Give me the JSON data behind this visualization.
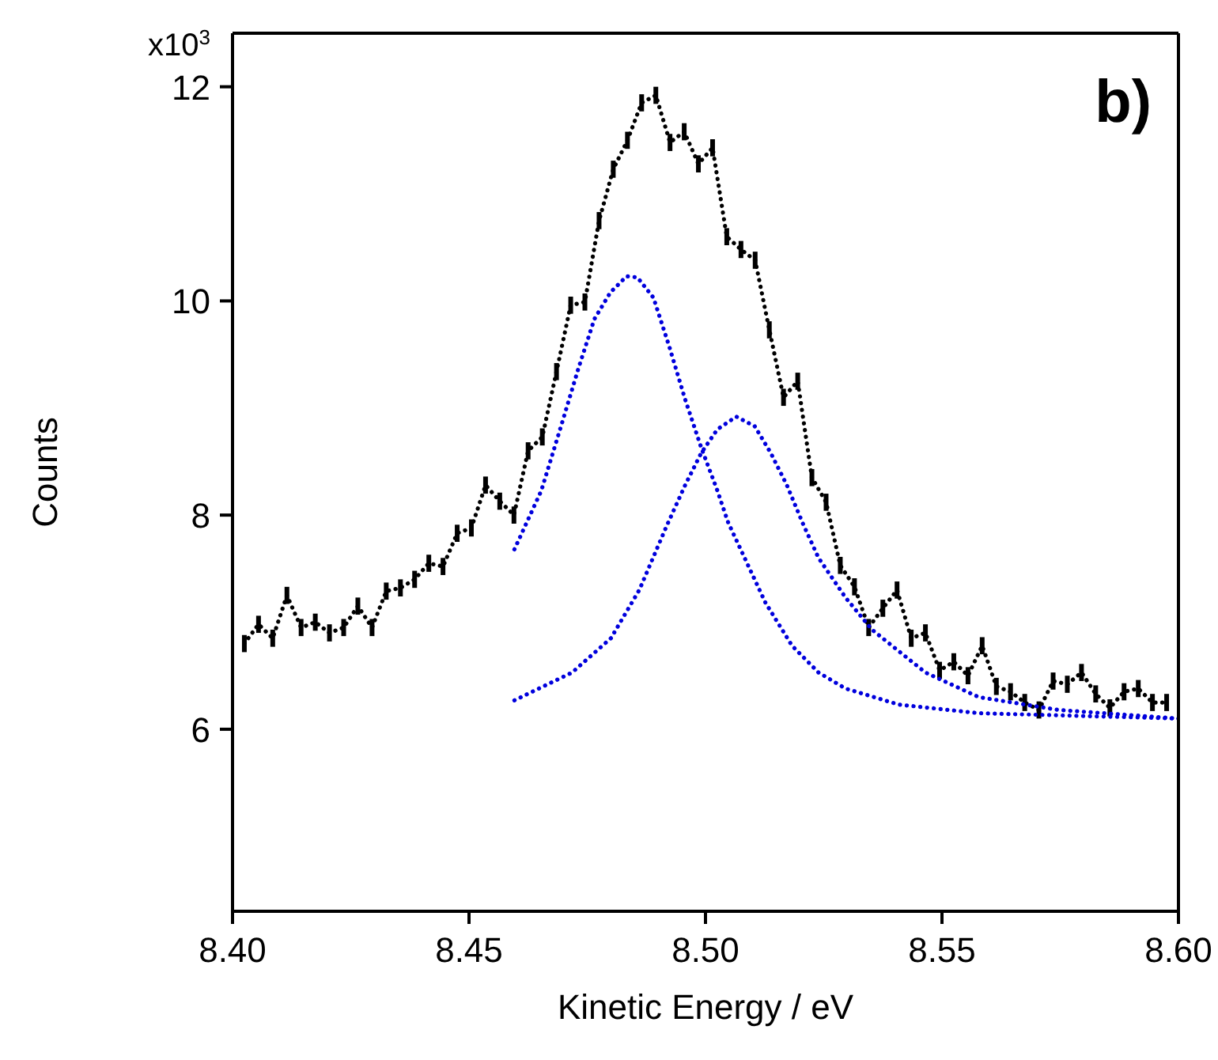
{
  "chart_data": {
    "type": "line",
    "xlabel": "Kinetic Energy / eV",
    "ylabel": "Counts",
    "xlim": [
      8.4,
      8.6
    ],
    "xticks": [
      {
        "value": 8.4,
        "label": "8.40"
      },
      8.45,
      {
        "value": 8.5,
        "label": "8.50"
      },
      8.55,
      {
        "value": 8.6,
        "label": "8.60"
      }
    ],
    "ylim": [
      4.3,
      12.5
    ],
    "yticks": [
      6,
      8,
      10,
      12
    ],
    "line_style": "dotted",
    "marker": "none",
    "annotations": [
      "b)",
      "x10$^{3}$"
    ],
    "series": [
      {
        "color": "#000000",
        "x": [
          8.4025,
          8.4055,
          8.4085,
          8.4115,
          8.4145,
          8.4175,
          8.4205,
          8.4235,
          8.4265,
          8.4295,
          8.4325,
          8.4355,
          8.4385,
          8.4415,
          8.4445,
          8.4475,
          8.4505,
          8.4535,
          8.4565,
          8.4595,
          8.4625,
          8.4655,
          8.4685,
          8.4715,
          8.4745,
          8.4775,
          8.4805,
          8.4835,
          8.4865,
          8.4895,
          8.4925,
          8.4955,
          8.4985,
          8.5015,
          8.5045,
          8.5075,
          8.5105,
          8.5135,
          8.5165,
          8.5195,
          8.5225,
          8.5255,
          8.5285,
          8.5315,
          8.5345,
          8.5375,
          8.5405,
          8.5435,
          8.5465,
          8.5495,
          8.5525,
          8.5555,
          8.5585,
          8.5615,
          8.5645,
          8.5675,
          8.5705,
          8.5735,
          8.5765,
          8.5795,
          8.5825,
          8.5855,
          8.5885,
          8.5915,
          8.5945,
          8.5975
        ],
        "values": [
          6.8,
          6.98,
          6.85,
          7.25,
          6.95,
          7.0,
          6.9,
          6.95,
          7.15,
          6.95,
          7.29,
          7.32,
          7.4,
          7.55,
          7.52,
          7.83,
          7.88,
          8.28,
          8.13,
          8.0,
          8.6,
          8.73,
          9.34,
          9.96,
          9.99,
          10.75,
          11.23,
          11.5,
          11.85,
          11.92,
          11.48,
          11.58,
          11.28,
          11.43,
          10.6,
          10.48,
          10.38,
          9.73,
          9.1,
          9.25,
          8.35,
          8.12,
          7.53,
          7.33,
          6.95,
          7.13,
          7.3,
          6.85,
          6.9,
          6.55,
          6.63,
          6.5,
          6.78,
          6.4,
          6.35,
          6.25,
          6.18,
          6.45,
          6.42,
          6.53,
          6.33,
          6.2,
          6.35,
          6.38,
          6.25,
          6.25
        ],
        "errors": [
          0.08,
          0.08,
          0.08,
          0.08,
          0.08,
          0.08,
          0.08,
          0.08,
          0.08,
          0.08,
          0.08,
          0.08,
          0.08,
          0.08,
          0.08,
          0.08,
          0.08,
          0.08,
          0.08,
          0.08,
          0.08,
          0.08,
          0.08,
          0.08,
          0.08,
          0.08,
          0.08,
          0.08,
          0.08,
          0.08,
          0.08,
          0.08,
          0.08,
          0.08,
          0.08,
          0.08,
          0.08,
          0.08,
          0.08,
          0.08,
          0.08,
          0.08,
          0.08,
          0.08,
          0.08,
          0.08,
          0.08,
          0.08,
          0.08,
          0.08,
          0.08,
          0.08,
          0.08,
          0.08,
          0.08,
          0.08,
          0.08,
          0.08,
          0.08,
          0.08,
          0.08,
          0.08,
          0.08,
          0.08,
          0.08,
          0.08
        ]
      },
      {
        "color": "#0000dd",
        "x": [
          8.4596,
          8.4653,
          8.4698,
          8.4732,
          8.4765,
          8.4799,
          8.4833,
          8.4856,
          8.489,
          8.4923,
          8.4957,
          8.4991,
          8.5025,
          8.5048,
          8.5127,
          8.5183,
          8.5239,
          8.5296,
          8.5409,
          8.5578,
          8.5747,
          8.6
        ],
        "values": [
          7.68,
          8.23,
          8.88,
          9.38,
          9.83,
          10.08,
          10.23,
          10.22,
          10.03,
          9.58,
          9.08,
          8.63,
          8.23,
          7.93,
          7.18,
          6.78,
          6.53,
          6.38,
          6.23,
          6.15,
          6.13,
          6.1
        ]
      },
      {
        "color": "#0000dd",
        "x": [
          8.4596,
          8.4718,
          8.48,
          8.486,
          8.4918,
          8.4957,
          8.4991,
          8.5025,
          8.5065,
          8.5104,
          8.5138,
          8.5172,
          8.5205,
          8.5239,
          8.5296,
          8.5352,
          8.5465,
          8.5578,
          8.5747,
          8.6
        ],
        "values": [
          6.27,
          6.53,
          6.85,
          7.3,
          7.9,
          8.28,
          8.58,
          8.8,
          8.92,
          8.83,
          8.58,
          8.28,
          7.93,
          7.6,
          7.23,
          6.93,
          6.53,
          6.3,
          6.18,
          6.1
        ]
      }
    ]
  }
}
